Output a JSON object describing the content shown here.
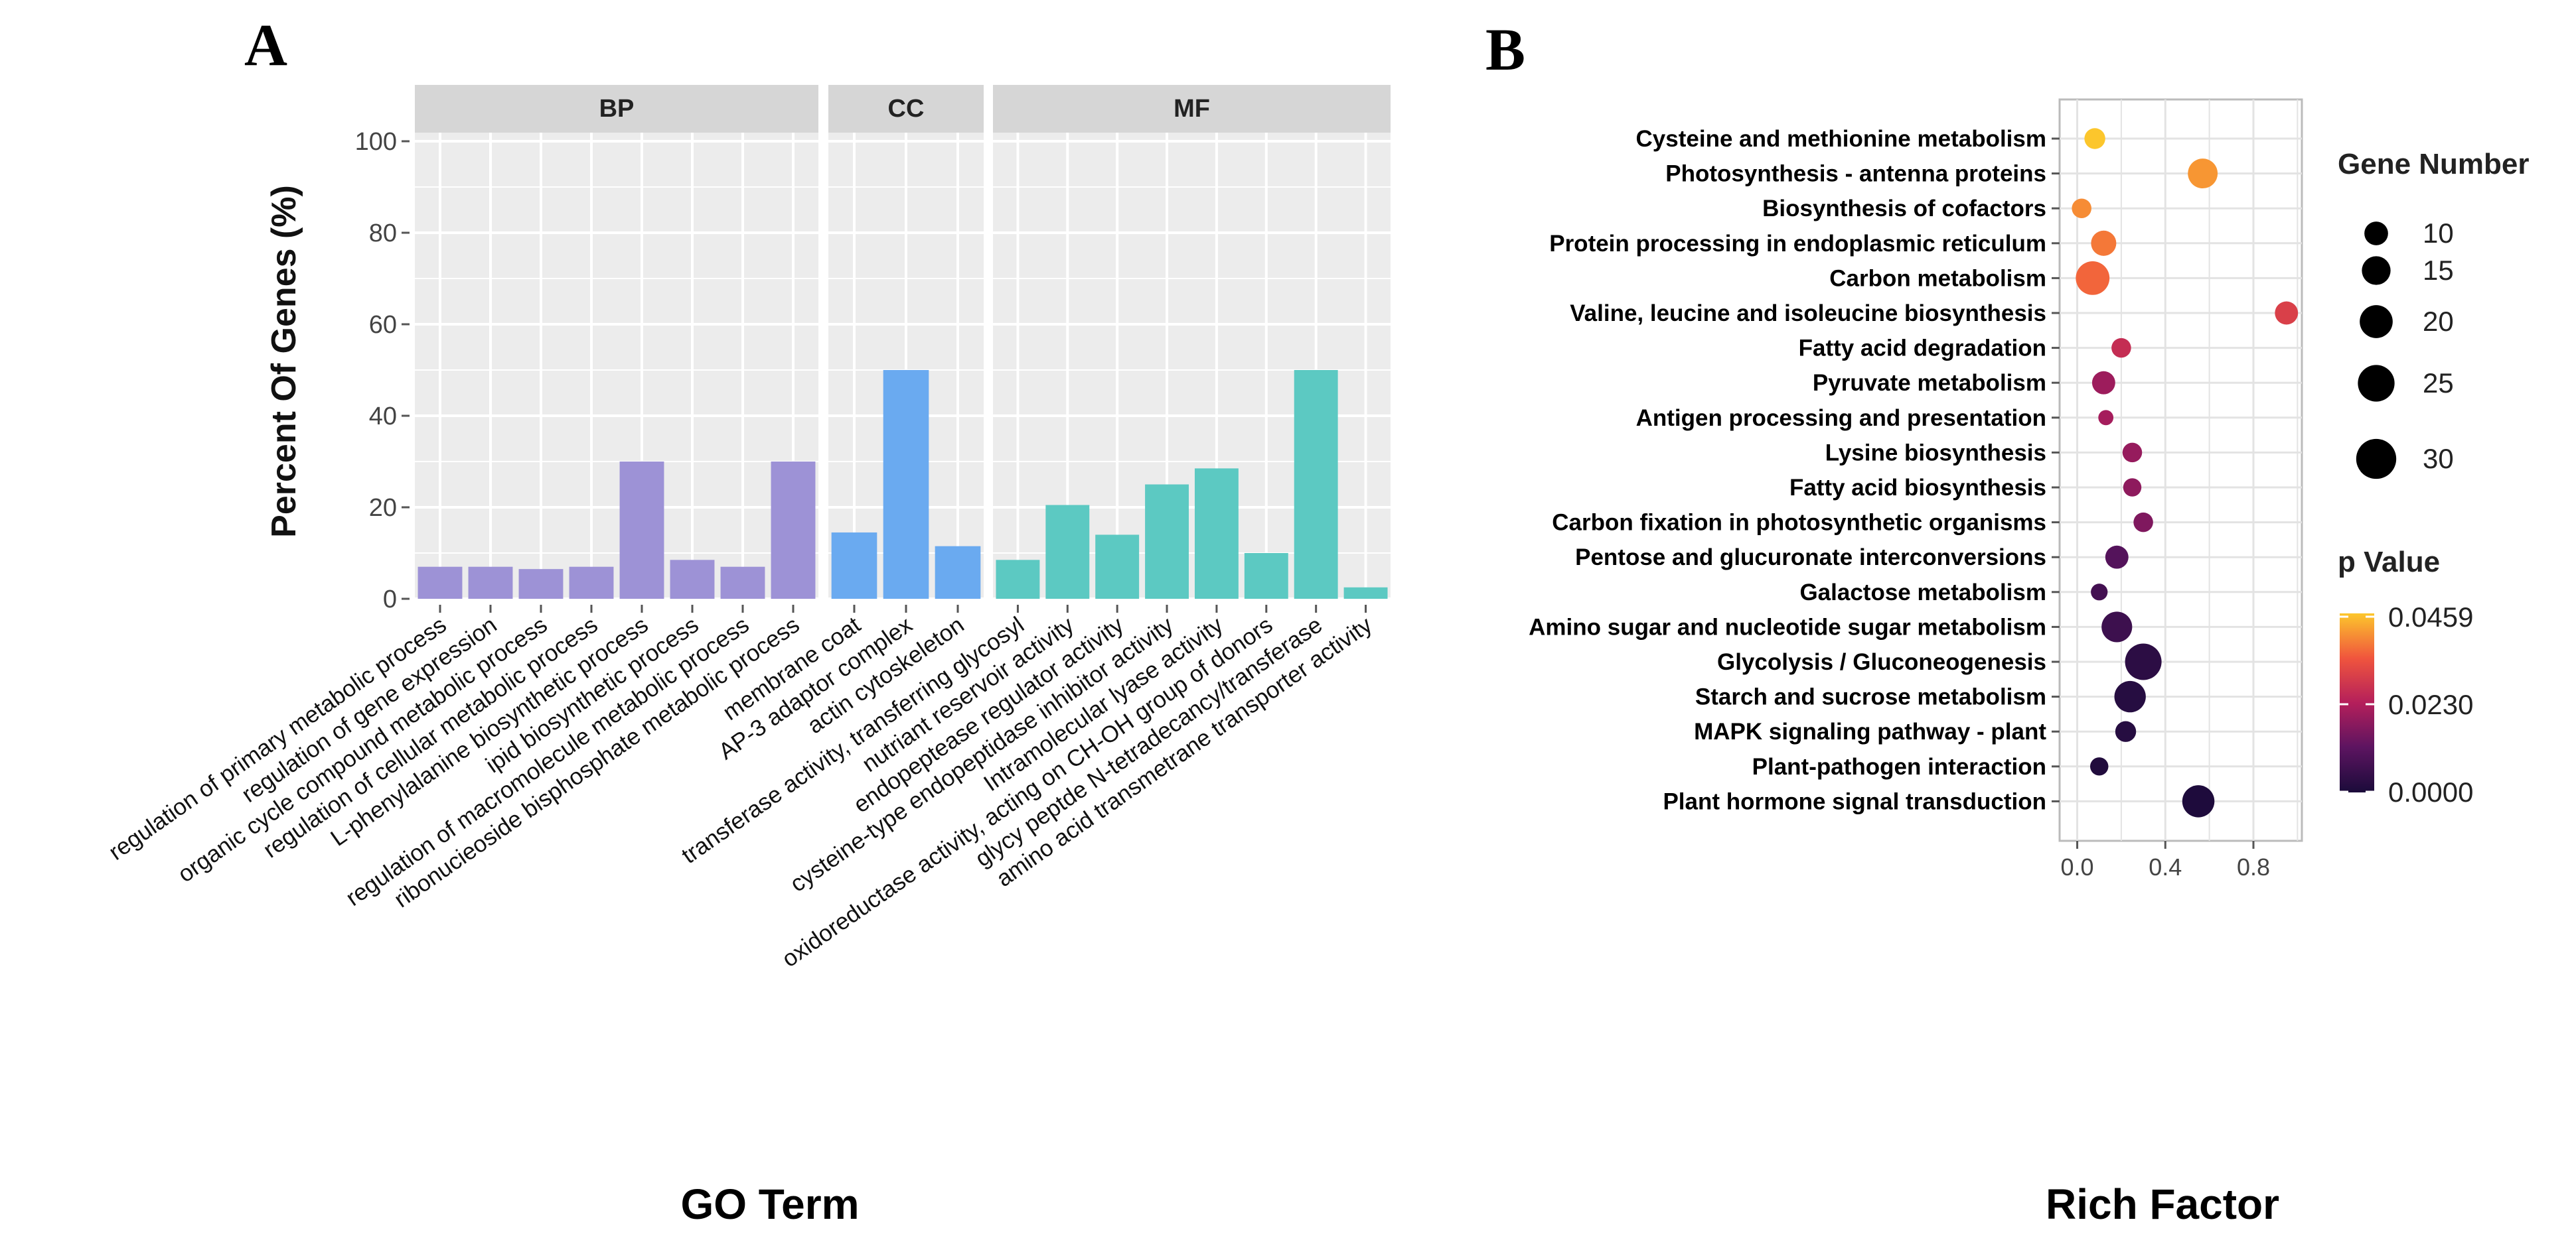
{
  "panel_a_letter": "A",
  "panel_b_letter": "B",
  "chart_data": [
    {
      "type": "bar",
      "panel": "A",
      "xlabel": "GO Term",
      "ylabel": "Percent Of Genes (%)",
      "ylim": [
        0,
        105
      ],
      "yticks": [
        0,
        20,
        40,
        60,
        80,
        100
      ],
      "grid": true,
      "facets": [
        {
          "name": "BP",
          "color": "#9d92d6",
          "categories": [
            "regulation of primary metabolic process",
            "regulation of gene expression",
            "organic cycle compound metabolic process",
            "regulation of cellular metabolic process",
            "L-phenylalanine biosynthetic process",
            "ipid biosynthetic process",
            "regulation of macromolecule metabolic process",
            "ribonucieoside bisphosphate metabolic process"
          ],
          "values": [
            7,
            7,
            6.5,
            7,
            30,
            8.5,
            7,
            30
          ]
        },
        {
          "name": "CC",
          "color": "#6aaaf0",
          "categories": [
            "membrane coat",
            "AP-3 adaptor complex",
            "actin cytoskeleton"
          ],
          "values": [
            14.5,
            50,
            11.5
          ]
        },
        {
          "name": "MF",
          "color": "#5cc9c2",
          "categories": [
            "transferase activity, transferring glycosyl",
            "nutriant reservoir activity",
            "endopeptease regulator activity",
            "cysteine-type endopeptidase inhibitor activity",
            "Intramolecular lyase activity",
            "oxidoreductase activity, acting on CH-OH group of donors",
            "glycy peptde N-tetradecancy/transferase",
            "amino acid transmetrane transporter activity"
          ],
          "values": [
            8.5,
            20.5,
            14,
            25,
            28.5,
            10,
            50,
            2.5
          ]
        }
      ]
    },
    {
      "type": "scatter",
      "panel": "B",
      "xlabel": "Rich Factor",
      "ylabel": "",
      "xlim": [
        -0.08,
        1.02
      ],
      "xticks": [
        "0.0",
        "0.4",
        "0.8"
      ],
      "grid": true,
      "legend_position": "right",
      "size_legend": {
        "title": "Gene Number",
        "values": [
          10,
          15,
          20,
          25,
          30
        ]
      },
      "color_legend": {
        "title": "p Value",
        "max_label": "0.0459",
        "mid_label": "0.0230",
        "min_label": "0.0000",
        "max": 0.0459,
        "min": 0.0
      },
      "pathways": [
        {
          "name": "Cysteine and methionine metabolism",
          "rich_factor": 0.08,
          "gene_number": 8,
          "p_value": 0.046
        },
        {
          "name": "Photosynthesis - antenna proteins",
          "rich_factor": 0.57,
          "gene_number": 17,
          "p_value": 0.041
        },
        {
          "name": "Biosynthesis of cofactors",
          "rich_factor": 0.02,
          "gene_number": 7,
          "p_value": 0.04
        },
        {
          "name": "Protein processing in endoplasmic reticulum",
          "rich_factor": 0.12,
          "gene_number": 12,
          "p_value": 0.038
        },
        {
          "name": "Carbon metabolism",
          "rich_factor": 0.07,
          "gene_number": 22,
          "p_value": 0.036
        },
        {
          "name": "Valine, leucine and isoleucine biosynthesis",
          "rich_factor": 0.95,
          "gene_number": 10,
          "p_value": 0.03
        },
        {
          "name": "Fatty acid degradation",
          "rich_factor": 0.2,
          "gene_number": 7,
          "p_value": 0.026
        },
        {
          "name": "Pyruvate metabolism",
          "rich_factor": 0.12,
          "gene_number": 10,
          "p_value": 0.02
        },
        {
          "name": "Antigen processing and presentation",
          "rich_factor": 0.13,
          "gene_number": 4,
          "p_value": 0.021
        },
        {
          "name": "Lysine biosynthesis",
          "rich_factor": 0.25,
          "gene_number": 7,
          "p_value": 0.019
        },
        {
          "name": "Fatty acid biosynthesis",
          "rich_factor": 0.25,
          "gene_number": 6,
          "p_value": 0.018
        },
        {
          "name": "Carbon fixation in photosynthetic organisms",
          "rich_factor": 0.3,
          "gene_number": 7,
          "p_value": 0.016
        },
        {
          "name": "Pentose and glucuronate interconversions",
          "rich_factor": 0.18,
          "gene_number": 10,
          "p_value": 0.01
        },
        {
          "name": "Galactose metabolism",
          "rich_factor": 0.1,
          "gene_number": 5,
          "p_value": 0.007
        },
        {
          "name": "Amino sugar and nucleotide sugar metabolism",
          "rich_factor": 0.18,
          "gene_number": 18,
          "p_value": 0.006
        },
        {
          "name": "Glycolysis / Gluconeogenesis",
          "rich_factor": 0.3,
          "gene_number": 26,
          "p_value": 0.003
        },
        {
          "name": "Starch and sucrose metabolism",
          "rich_factor": 0.24,
          "gene_number": 19,
          "p_value": 0.002
        },
        {
          "name": "MAPK signaling pathway - plant",
          "rich_factor": 0.22,
          "gene_number": 8,
          "p_value": 0.002
        },
        {
          "name": "Plant-pathogen interaction",
          "rich_factor": 0.1,
          "gene_number": 6,
          "p_value": 0.001
        },
        {
          "name": "Plant hormone signal transduction",
          "rich_factor": 0.55,
          "gene_number": 20,
          "p_value": 0.0005
        }
      ]
    }
  ]
}
